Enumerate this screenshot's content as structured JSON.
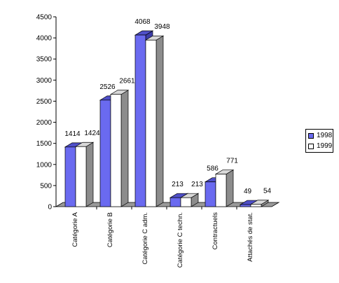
{
  "chart_data": {
    "type": "bar",
    "title": "",
    "xlabel": "",
    "ylabel": "",
    "ylim": [
      0,
      4500
    ],
    "y_ticks": [
      0,
      500,
      1000,
      1500,
      2000,
      2500,
      3000,
      3500,
      4000,
      4500
    ],
    "categories": [
      "Catégorie A",
      "Catégorie B",
      "Catégorie C adm.",
      "Catégorie C techn.",
      "Contractuels",
      "Attachés de stat."
    ],
    "series": [
      {
        "name": "1998",
        "values": [
          1414,
          2526,
          4068,
          213,
          586,
          49
        ],
        "color": "#6a6af0"
      },
      {
        "name": "1999",
        "values": [
          1424,
          2661,
          3948,
          213,
          771,
          54
        ],
        "color": "#ffffff"
      }
    ],
    "grid": false,
    "legend_position": "right",
    "style": "3d-clustered-column"
  }
}
